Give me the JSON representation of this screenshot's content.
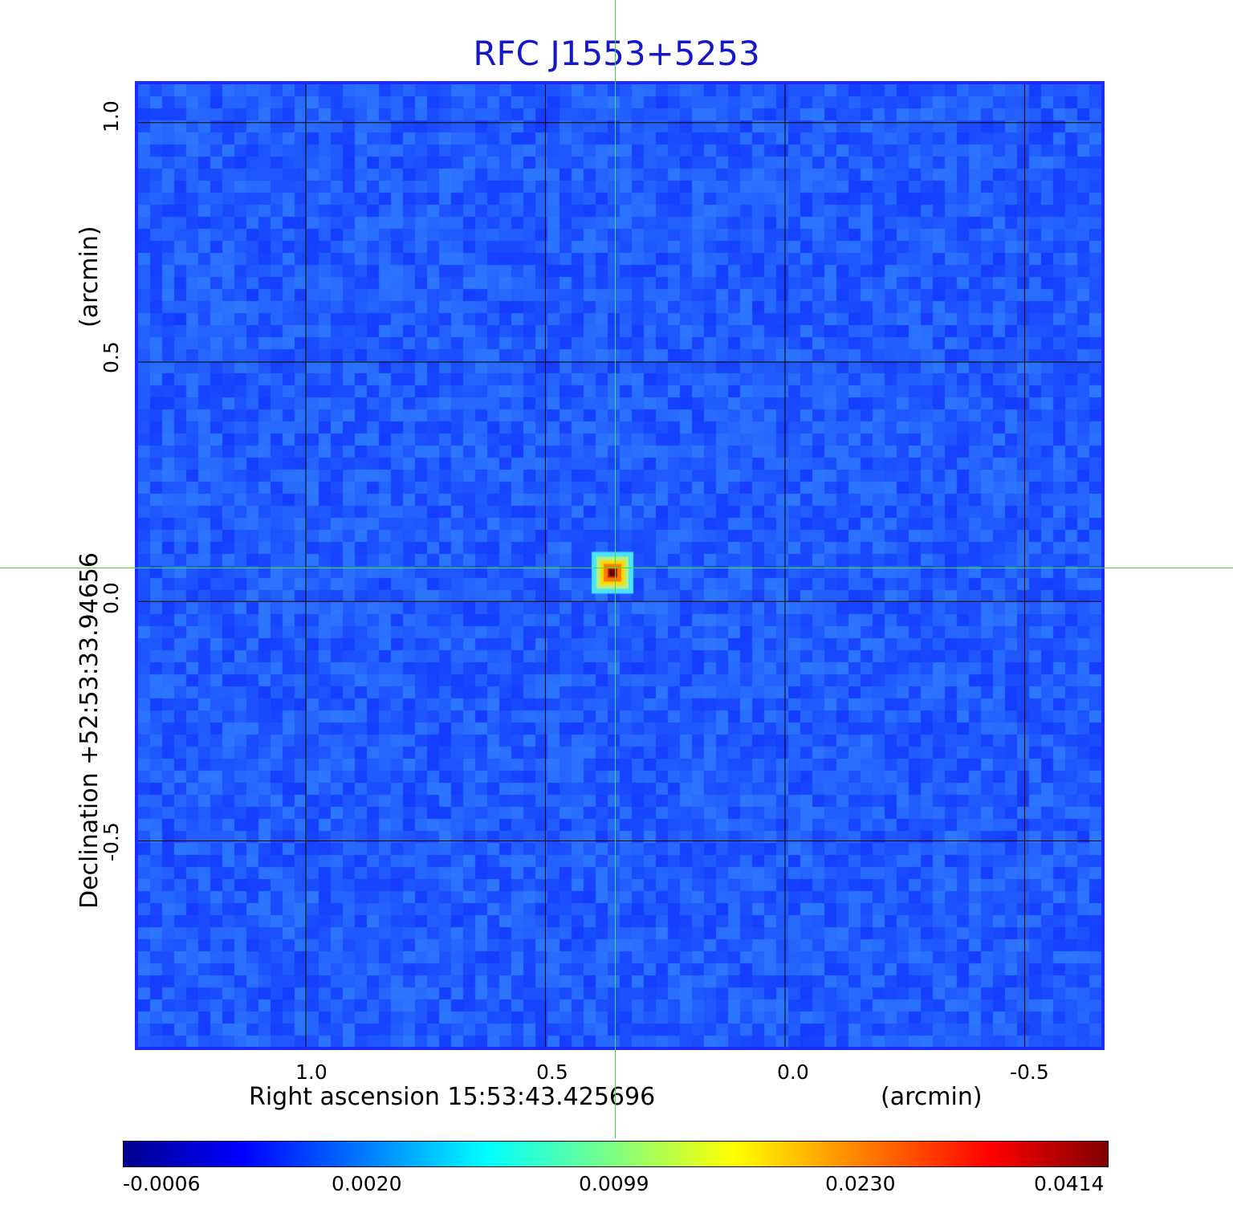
{
  "title": "RFC J1553+5253",
  "x_axis": {
    "label": "Right ascension  15:53:43.425696",
    "unit": "(arcmin)",
    "ticks": [
      "1.0",
      "0.5",
      "0.0",
      "-0.5"
    ]
  },
  "y_axis": {
    "label": "Declination  +52:53:33.94656",
    "unit": "(arcmin)",
    "ticks": [
      "1.0",
      "0.5",
      "0.0",
      "-0.5"
    ]
  },
  "colorbar": {
    "colormap": "jet",
    "ticks": [
      "-0.0006",
      "0.0020",
      "0.0099",
      "0.0230",
      "0.0414"
    ]
  },
  "colors": {
    "title": "#1518c8",
    "crosshair": "#3fdc3f",
    "background_map": "#1d4dff"
  },
  "chart_data": {
    "type": "heatmap",
    "title": "RFC J1553+5253",
    "xlabel": "Right ascension  15:53:43.425696",
    "ylabel": "Declination  +52:53:33.94656",
    "x_unit": "arcmin",
    "y_unit": "arcmin",
    "x_ticks": [
      1.0,
      0.5,
      0.0,
      -0.5
    ],
    "y_ticks": [
      1.0,
      0.5,
      0.0,
      -0.5
    ],
    "xlim": [
      1.35,
      -0.66
    ],
    "ylim": [
      -0.93,
      1.08
    ],
    "grid": true,
    "colorbar_ticks": [
      -0.0006,
      0.002,
      0.0099,
      0.023,
      0.0414
    ],
    "colorbar_range": [
      -0.0006,
      0.0414
    ],
    "source": {
      "ra_offset_arcmin": 0.36,
      "dec_offset_arcmin": 0.06,
      "peak": 0.0414
    },
    "crosshair": {
      "ra_offset_arcmin": 0.36,
      "dec_offset_arcmin": 0.07
    }
  }
}
